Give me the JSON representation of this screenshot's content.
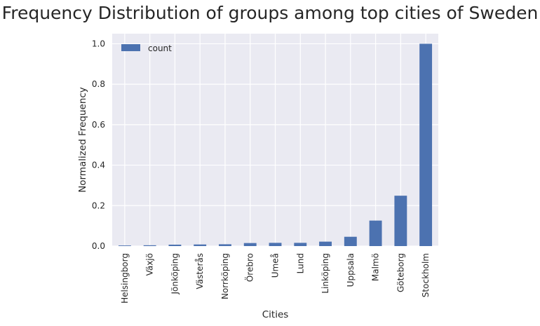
{
  "chart_data": {
    "type": "bar",
    "title": "Frequency Distribution of groups among top cities of Sweden",
    "xlabel": "Cities",
    "ylabel": "Normalized Frequency",
    "categories": [
      "Helsingborg",
      "Växjö",
      "Jönköping",
      "Västerås",
      "Norrköping",
      "Örebro",
      "Umeå",
      "Lund",
      "Linköping",
      "Uppsala",
      "Malmö",
      "Göteborg",
      "Stockholm"
    ],
    "series": [
      {
        "name": "count",
        "values": [
          0.003,
          0.004,
          0.007,
          0.008,
          0.009,
          0.015,
          0.016,
          0.016,
          0.022,
          0.046,
          0.126,
          0.249,
          1.0
        ]
      }
    ],
    "ylim": [
      0,
      1.05
    ],
    "yticks": [
      "0.0",
      "0.2",
      "0.4",
      "0.6",
      "0.8",
      "1.0"
    ],
    "ytick_values": [
      0,
      0.2,
      0.4,
      0.6,
      0.8,
      1.0
    ],
    "grid": true,
    "legend_position": "top-left",
    "colors": {
      "bar": "#4c72b0",
      "background": "#eaeaf2",
      "grid": "#ffffff"
    }
  }
}
